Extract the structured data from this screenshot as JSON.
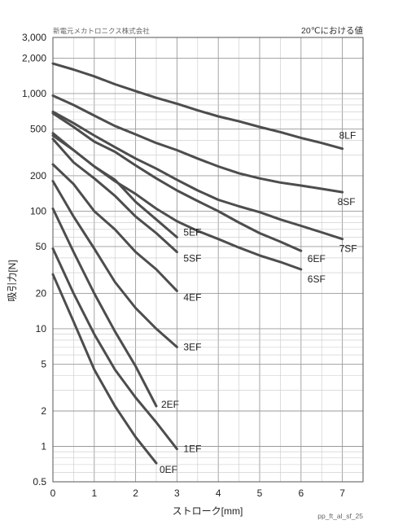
{
  "header": {
    "company": "新電元メカトロニクス株式会社",
    "condition_note": "20℃における値",
    "code": "pp_ft_al_sf_25"
  },
  "chart_data": {
    "type": "line",
    "xlabel": "ストローク[mm]",
    "ylabel": "吸引力[N]",
    "xlim": [
      0,
      7.5
    ],
    "ylim": [
      0.5,
      3000
    ],
    "yscale": "log",
    "grid": true,
    "x_ticks": [
      {
        "value": 0,
        "label": "0"
      },
      {
        "value": 1,
        "label": "1"
      },
      {
        "value": 2,
        "label": "2"
      },
      {
        "value": 3,
        "label": "3"
      },
      {
        "value": 4,
        "label": "4"
      },
      {
        "value": 5,
        "label": "5"
      },
      {
        "value": 6,
        "label": "6"
      },
      {
        "value": 7,
        "label": "7"
      }
    ],
    "y_ticks": [
      {
        "value": 0.5,
        "label": "0.5"
      },
      {
        "value": 1,
        "label": "1"
      },
      {
        "value": 2,
        "label": "2"
      },
      {
        "value": 5,
        "label": "5"
      },
      {
        "value": 10,
        "label": "10"
      },
      {
        "value": 20,
        "label": "20"
      },
      {
        "value": 50,
        "label": "50"
      },
      {
        "value": 100,
        "label": "100"
      },
      {
        "value": 200,
        "label": "200"
      },
      {
        "value": 500,
        "label": "500"
      },
      {
        "value": 1000,
        "label": "1,000"
      },
      {
        "value": 2000,
        "label": "2,000"
      },
      {
        "value": 3000,
        "label": "3,000"
      }
    ],
    "series": [
      {
        "name": "0EF",
        "x": [
          0,
          0.5,
          1,
          1.5,
          2,
          2.5
        ],
        "y": [
          29,
          11.5,
          4.5,
          2.2,
          1.2,
          0.72
        ]
      },
      {
        "name": "1EF",
        "x": [
          0,
          0.5,
          1,
          1.5,
          2,
          2.5,
          3
        ],
        "y": [
          48,
          20,
          9,
          4.5,
          2.6,
          1.6,
          0.95
        ]
      },
      {
        "name": "2EF",
        "x": [
          0,
          0.5,
          1,
          1.5,
          2,
          2.5
        ],
        "y": [
          105,
          45,
          20,
          9.5,
          4.8,
          2.2
        ]
      },
      {
        "name": "3EF",
        "x": [
          0,
          0.5,
          1,
          1.5,
          2,
          2.5,
          3
        ],
        "y": [
          180,
          90,
          48,
          25,
          15,
          10,
          7
        ]
      },
      {
        "name": "4EF",
        "x": [
          0,
          0.5,
          1,
          1.5,
          2,
          2.5,
          3
        ],
        "y": [
          250,
          170,
          100,
          70,
          45,
          32,
          21
        ]
      },
      {
        "name": "5SF",
        "x": [
          0,
          0.5,
          1,
          1.5,
          2,
          2.5,
          3
        ],
        "y": [
          410,
          260,
          190,
          135,
          90,
          65,
          45
        ]
      },
      {
        "name": "5EF",
        "x": [
          0,
          0.5,
          1,
          1.5,
          2,
          2.5,
          3
        ],
        "y": [
          440,
          330,
          240,
          185,
          120,
          85,
          60
        ]
      },
      {
        "name": "6SF",
        "x": [
          0,
          0.5,
          1,
          1.5,
          2,
          2.5,
          3,
          3.5,
          4,
          4.5,
          5,
          5.5,
          6
        ],
        "y": [
          460,
          330,
          240,
          180,
          140,
          105,
          82,
          68,
          58,
          49,
          42,
          37,
          32
        ]
      },
      {
        "name": "6EF",
        "x": [
          0,
          0.5,
          1,
          1.5,
          2,
          2.5,
          3,
          3.5,
          4,
          4.5,
          5,
          5.5,
          6
        ],
        "y": [
          680,
          520,
          390,
          320,
          245,
          190,
          150,
          122,
          100,
          80,
          65,
          55,
          46
        ]
      },
      {
        "name": "7SF",
        "x": [
          0,
          0.5,
          1,
          1.5,
          2,
          2.5,
          3,
          3.5,
          4,
          4.5,
          5,
          5.5,
          6,
          6.5,
          7
        ],
        "y": [
          700,
          560,
          440,
          350,
          280,
          230,
          185,
          150,
          125,
          110,
          98,
          85,
          75,
          66,
          58
        ]
      },
      {
        "name": "8SF",
        "x": [
          0,
          0.5,
          1,
          1.5,
          2,
          2.5,
          3,
          3.5,
          4,
          4.5,
          5,
          5.5,
          6,
          6.5,
          7
        ],
        "y": [
          960,
          800,
          650,
          530,
          450,
          380,
          330,
          280,
          240,
          210,
          190,
          175,
          165,
          155,
          145
        ]
      },
      {
        "name": "8LF",
        "x": [
          0,
          0.5,
          1,
          1.5,
          2,
          2.5,
          3,
          3.5,
          4,
          4.5,
          5,
          5.5,
          6,
          6.5,
          7
        ],
        "y": [
          1800,
          1600,
          1400,
          1200,
          1050,
          920,
          820,
          720,
          640,
          580,
          520,
          470,
          420,
          380,
          340
        ]
      }
    ]
  }
}
